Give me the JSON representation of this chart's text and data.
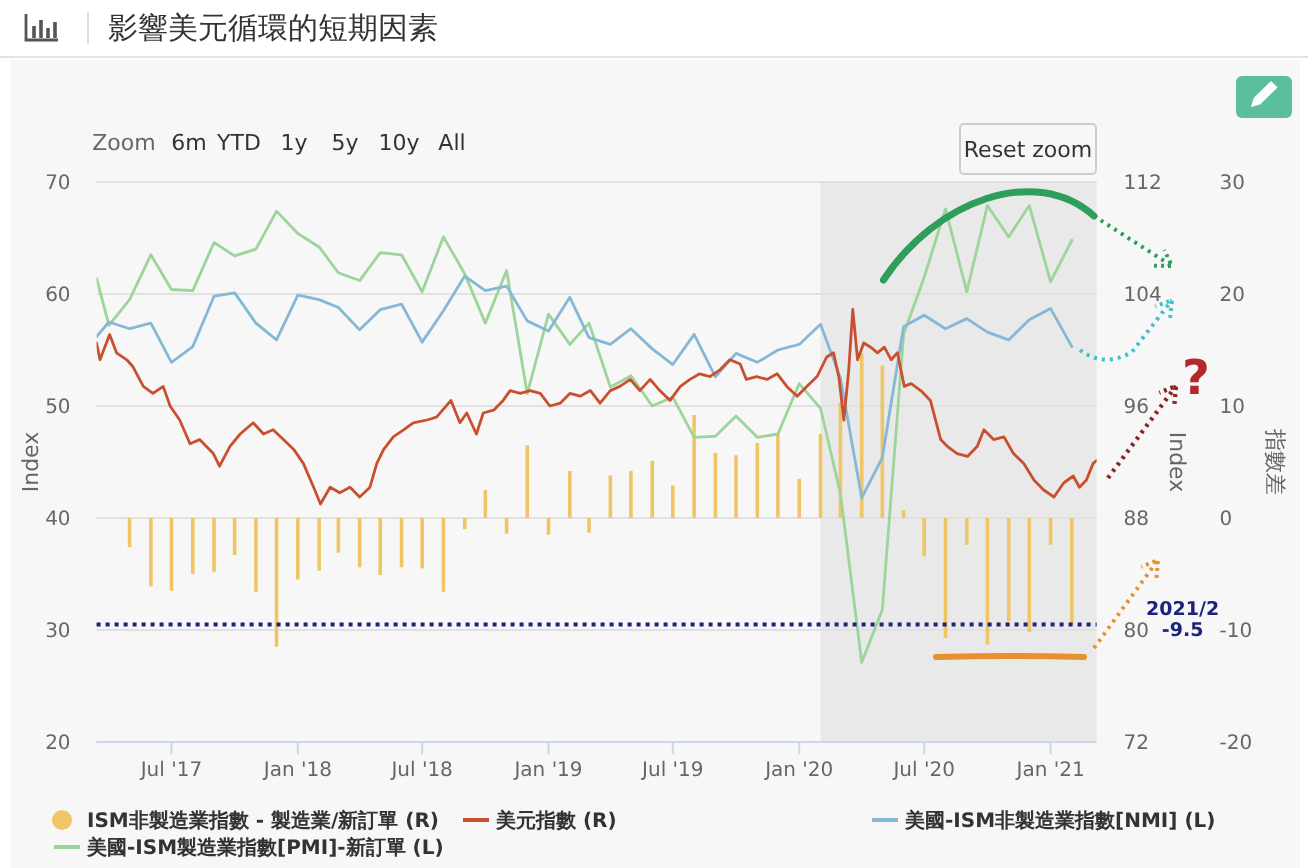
{
  "chart_data": {
    "type": "line",
    "title": "影響美元循環的短期因素",
    "ylabel": "Index",
    "y2label": "Index",
    "y3label": "指數差",
    "xlim": [
      "2017-03-14",
      "2021-03-09"
    ],
    "xticks": [
      {
        "value": "2017-07-01",
        "label": "Jul '17"
      },
      {
        "value": "2018-01-01",
        "label": "Jan '18"
      },
      {
        "value": "2018-07-01",
        "label": "Jul '18"
      },
      {
        "value": "2019-01-01",
        "label": "Jan '19"
      },
      {
        "value": "2019-07-01",
        "label": "Jul '19"
      },
      {
        "value": "2020-01-01",
        "label": "Jan '20"
      },
      {
        "value": "2020-07-01",
        "label": "Jul '20"
      },
      {
        "value": "2021-01-01",
        "label": "Jan '21"
      }
    ],
    "ylim": [
      20,
      70
    ],
    "yticks": [
      20,
      30,
      40,
      50,
      60,
      70
    ],
    "y2lim": [
      72,
      112
    ],
    "y2ticks": [
      72,
      80,
      88,
      96,
      104,
      112
    ],
    "y3lim": [
      -20,
      30
    ],
    "y3ticks": [
      -20,
      -10,
      0,
      10,
      20,
      30
    ],
    "grid": "y",
    "legend": "bottom",
    "bands": [
      {
        "axis": "x",
        "from": "2020-02-01",
        "to": "2021-03-09",
        "color": "#e9e9e9"
      }
    ],
    "ref_lines": [
      {
        "axis": "y3",
        "value": -9.5,
        "label": "2021/2\n-9.5",
        "color": "#1b237a",
        "line_style": "dotted"
      }
    ],
    "annotations": [
      "Zoom",
      "6m",
      "YTD",
      "1y",
      "5y",
      "10y",
      "All",
      "Reset zoom",
      "?"
    ],
    "series": [
      {
        "name": "ISM非製造業指數 - 製造業/新訂單 (R)",
        "type": "bar",
        "axis": "y3",
        "color": "#f0c565",
        "x": [
          "2017-05-01",
          "2017-06-01",
          "2017-07-01",
          "2017-08-01",
          "2017-09-01",
          "2017-10-01",
          "2017-11-01",
          "2017-12-01",
          "2018-01-01",
          "2018-02-01",
          "2018-03-01",
          "2018-04-01",
          "2018-05-01",
          "2018-06-01",
          "2018-07-01",
          "2018-08-01",
          "2018-09-01",
          "2018-10-01",
          "2018-11-01",
          "2018-12-01",
          "2019-01-01",
          "2019-02-01",
          "2019-03-01",
          "2019-04-01",
          "2019-05-01",
          "2019-06-01",
          "2019-07-01",
          "2019-08-01",
          "2019-09-01",
          "2019-10-01",
          "2019-11-01",
          "2019-12-01",
          "2020-01-01",
          "2020-02-01",
          "2020-03-01",
          "2020-04-01",
          "2020-05-01",
          "2020-06-01",
          "2020-07-01",
          "2020-08-01",
          "2020-09-01",
          "2020-10-01",
          "2020-11-01",
          "2020-12-01",
          "2021-01-01",
          "2021-02-01"
        ],
        "values": [
          -2.6,
          -6.1,
          -6.5,
          -5.0,
          -4.8,
          -3.3,
          -6.6,
          -11.5,
          -5.5,
          -4.7,
          -3.1,
          -4.4,
          -5.1,
          -4.4,
          -4.5,
          -6.6,
          -1.0,
          2.5,
          -1.4,
          6.5,
          -1.5,
          4.2,
          -1.3,
          3.8,
          4.2,
          5.1,
          2.9,
          9.2,
          5.8,
          5.6,
          6.7,
          7.5,
          3.5,
          7.5,
          10.3,
          14.7,
          13.6,
          0.7,
          -3.4,
          -10.7,
          -2.4,
          -11.3,
          -9.2,
          -10.2,
          -2.4,
          -9.5
        ]
      },
      {
        "name": "美元指數 (R)",
        "axis": "y2",
        "color": "#c9502f",
        "x": [
          "2017-03-14",
          "2017-03-19",
          "2017-04-02",
          "2017-04-12",
          "2017-04-27",
          "2017-05-06",
          "2017-05-21",
          "2017-06-04",
          "2017-06-19",
          "2017-06-29",
          "2017-07-13",
          "2017-07-28",
          "2017-08-11",
          "2017-08-31",
          "2017-09-09",
          "2017-09-24",
          "2017-10-09",
          "2017-10-28",
          "2017-11-12",
          "2017-11-26",
          "2017-12-11",
          "2017-12-26",
          "2018-01-09",
          "2018-01-24",
          "2018-02-03",
          "2018-02-17",
          "2018-03-03",
          "2018-03-18",
          "2018-04-01",
          "2018-04-16",
          "2018-04-26",
          "2018-05-06",
          "2018-05-20",
          "2018-06-04",
          "2018-06-18",
          "2018-07-08",
          "2018-07-22",
          "2018-08-12",
          "2018-08-25",
          "2018-09-04",
          "2018-09-18",
          "2018-09-28",
          "2018-10-13",
          "2018-10-27",
          "2018-11-06",
          "2018-11-21",
          "2018-12-05",
          "2018-12-20",
          "2019-01-03",
          "2019-01-18",
          "2019-02-01",
          "2019-02-16",
          "2019-03-03",
          "2019-03-17",
          "2019-04-01",
          "2019-04-15",
          "2019-04-30",
          "2019-05-14",
          "2019-05-29",
          "2019-06-12",
          "2019-06-27",
          "2019-07-12",
          "2019-07-26",
          "2019-08-09",
          "2019-08-24",
          "2019-09-08",
          "2019-09-22",
          "2019-10-07",
          "2019-10-16",
          "2019-10-31",
          "2019-11-15",
          "2019-11-30",
          "2019-12-14",
          "2019-12-29",
          "2020-01-12",
          "2020-01-27",
          "2020-02-10",
          "2020-02-20",
          "2020-02-28",
          "2020-03-06",
          "2020-03-13",
          "2020-03-19",
          "2020-03-26",
          "2020-04-04",
          "2020-04-14",
          "2020-04-24",
          "2020-05-04",
          "2020-05-14",
          "2020-05-23",
          "2020-06-02",
          "2020-06-12",
          "2020-06-26",
          "2020-07-10",
          "2020-07-25",
          "2020-08-04",
          "2020-08-18",
          "2020-09-02",
          "2020-09-16",
          "2020-09-26",
          "2020-10-10",
          "2020-10-25",
          "2020-11-08",
          "2020-11-23",
          "2020-12-08",
          "2020-12-22",
          "2021-01-06",
          "2021-01-20",
          "2021-02-03",
          "2021-02-12",
          "2021-02-22",
          "2021-03-04",
          "2021-03-09"
        ],
        "values": [
          100.5,
          99.3,
          101.1,
          99.8,
          99.3,
          98.8,
          97.4,
          96.9,
          97.4,
          96.0,
          95.0,
          93.3,
          93.6,
          92.6,
          91.7,
          93.1,
          94.0,
          94.8,
          94.0,
          94.3,
          93.6,
          92.9,
          91.9,
          90.2,
          89.0,
          90.2,
          89.8,
          90.2,
          89.5,
          90.2,
          91.9,
          92.9,
          93.8,
          94.3,
          94.8,
          95.0,
          95.2,
          96.4,
          94.8,
          95.5,
          94.0,
          95.5,
          95.7,
          96.4,
          97.1,
          96.9,
          97.1,
          96.9,
          96.0,
          96.2,
          96.9,
          96.7,
          97.1,
          96.2,
          97.1,
          97.4,
          97.9,
          97.1,
          97.9,
          97.1,
          96.4,
          97.4,
          97.9,
          98.3,
          98.1,
          98.6,
          99.3,
          99.0,
          97.9,
          98.1,
          97.9,
          98.3,
          97.4,
          96.7,
          97.4,
          98.1,
          99.5,
          99.8,
          98.0,
          95.0,
          98.5,
          102.9,
          99.3,
          100.5,
          100.2,
          99.8,
          100.2,
          99.3,
          99.8,
          97.4,
          97.6,
          97.1,
          96.4,
          93.6,
          93.1,
          92.6,
          92.4,
          93.1,
          94.3,
          93.6,
          93.8,
          92.6,
          91.9,
          90.7,
          90.0,
          89.5,
          90.5,
          91.0,
          90.2,
          90.7,
          91.9,
          92.1
        ]
      },
      {
        "name": "美國-ISM非製造業指數[NMI] (L)",
        "color": "#84b8d6",
        "x": [
          "2017-03-14",
          "2017-04-01",
          "2017-05-01",
          "2017-06-01",
          "2017-07-01",
          "2017-08-01",
          "2017-09-01",
          "2017-10-01",
          "2017-11-01",
          "2017-12-01",
          "2018-01-01",
          "2018-02-01",
          "2018-03-01",
          "2018-04-01",
          "2018-05-01",
          "2018-06-01",
          "2018-07-01",
          "2018-08-01",
          "2018-09-01",
          "2018-10-01",
          "2018-11-01",
          "2018-12-01",
          "2019-01-01",
          "2019-02-01",
          "2019-03-01",
          "2019-04-01",
          "2019-05-01",
          "2019-06-01",
          "2019-07-01",
          "2019-08-01",
          "2019-09-01",
          "2019-10-01",
          "2019-11-01",
          "2019-12-01",
          "2020-01-01",
          "2020-02-01",
          "2020-03-01",
          "2020-04-01",
          "2020-05-01",
          "2020-06-01",
          "2020-07-01",
          "2020-08-01",
          "2020-09-01",
          "2020-10-01",
          "2020-11-01",
          "2020-12-01",
          "2021-01-01",
          "2021-02-01"
        ],
        "values": [
          56.2,
          57.5,
          56.9,
          57.4,
          53.9,
          55.3,
          59.8,
          60.1,
          57.4,
          55.9,
          59.9,
          59.5,
          58.8,
          56.8,
          58.6,
          59.1,
          55.7,
          58.5,
          61.6,
          60.3,
          60.7,
          57.6,
          56.7,
          59.7,
          56.1,
          55.5,
          56.9,
          55.1,
          53.7,
          56.4,
          52.6,
          54.7,
          53.9,
          55.0,
          55.5,
          57.3,
          52.5,
          41.8,
          45.4,
          57.1,
          58.1,
          56.9,
          57.8,
          56.6,
          55.9,
          57.7,
          58.7,
          55.3
        ]
      },
      {
        "name": "美國-ISM製造業指數[PMI]-新訂單 (L)",
        "color": "#9dd49a",
        "x": [
          "2017-03-14",
          "2017-04-01",
          "2017-05-01",
          "2017-06-01",
          "2017-07-01",
          "2017-08-01",
          "2017-09-01",
          "2017-10-01",
          "2017-11-01",
          "2017-12-01",
          "2018-01-01",
          "2018-02-01",
          "2018-03-01",
          "2018-04-01",
          "2018-05-01",
          "2018-06-01",
          "2018-07-01",
          "2018-08-01",
          "2018-09-01",
          "2018-10-01",
          "2018-11-01",
          "2018-12-01",
          "2019-01-01",
          "2019-02-01",
          "2019-03-01",
          "2019-04-01",
          "2019-05-01",
          "2019-06-01",
          "2019-07-01",
          "2019-08-01",
          "2019-09-01",
          "2019-10-01",
          "2019-11-01",
          "2019-12-01",
          "2020-01-01",
          "2020-02-01",
          "2020-03-01",
          "2020-04-01",
          "2020-05-01",
          "2020-06-01",
          "2020-07-01",
          "2020-08-01",
          "2020-09-01",
          "2020-10-01",
          "2020-11-01",
          "2020-12-01",
          "2021-01-01",
          "2021-02-01"
        ],
        "values": [
          61.4,
          57.2,
          59.5,
          63.5,
          60.4,
          60.3,
          64.6,
          63.4,
          64.0,
          67.4,
          65.4,
          64.2,
          61.9,
          61.2,
          63.7,
          63.5,
          60.2,
          65.1,
          61.8,
          57.4,
          62.1,
          51.1,
          58.2,
          55.5,
          57.4,
          51.7,
          52.7,
          50.0,
          50.8,
          47.2,
          47.3,
          49.1,
          47.2,
          47.5,
          52.0,
          49.8,
          42.2,
          27.1,
          31.8,
          56.4,
          61.5,
          67.6,
          60.2,
          67.9,
          65.1,
          67.9,
          61.1,
          64.8
        ]
      }
    ]
  }
}
